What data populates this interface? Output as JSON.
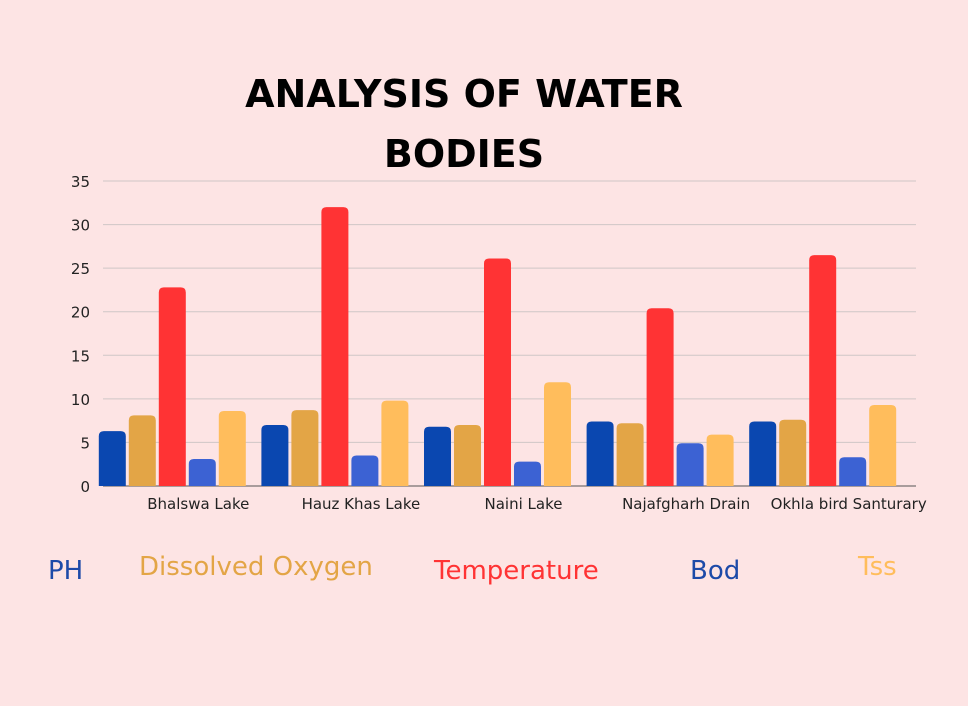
{
  "chart_data": {
    "type": "bar",
    "title_lines": [
      "ANALYSIS OF WATER",
      "BODIES"
    ],
    "categories": [
      "Bhalswa Lake",
      "Hauz Khas Lake",
      "Naini Lake",
      "Najafgharh Drain",
      "Okhla bird Santurary"
    ],
    "series": [
      {
        "name": "PH",
        "color": "#0a47b0",
        "values": [
          6.3,
          7.0,
          6.8,
          7.4,
          7.4
        ]
      },
      {
        "name": "Dissolved Oxygen",
        "color": "#e3a546",
        "values": [
          8.1,
          8.7,
          7.0,
          7.2,
          7.6
        ]
      },
      {
        "name": "Temperature",
        "color": "#ff3334",
        "values": [
          22.8,
          32.0,
          26.1,
          20.4,
          26.5
        ]
      },
      {
        "name": "Bod",
        "color": "#3c62d3",
        "values": [
          3.1,
          3.5,
          2.8,
          4.9,
          3.3
        ]
      },
      {
        "name": "Tss",
        "color": "#ffbd5c",
        "values": [
          8.6,
          9.8,
          11.9,
          5.9,
          9.3
        ]
      }
    ],
    "ylim": [
      0,
      35
    ],
    "yticks": [
      0,
      5,
      10,
      15,
      20,
      25,
      30,
      35
    ],
    "grid": true,
    "legend_position": "bottom"
  }
}
